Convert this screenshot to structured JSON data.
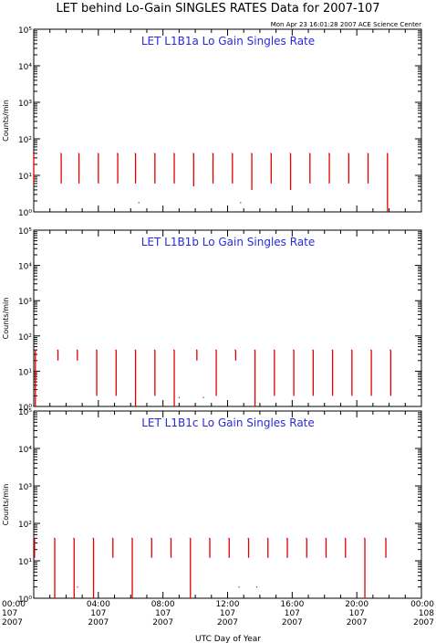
{
  "figure": {
    "title": "LET behind Lo-Gain SINGLES RATES Data for 2007-107",
    "timestamp": "Mon Apr 23 16:01:28 2007 ACE Science Center",
    "x_axis_label": "UTC Day of Year"
  },
  "chart_data": [
    {
      "type": "line",
      "title": "LET L1B1a Lo Gain Singles Rate",
      "ylabel": "Counts/min",
      "yscale": "log",
      "ylim": [
        1,
        100000
      ],
      "y_ticks": [
        "10⁰",
        "10¹",
        "10²",
        "10³",
        "10⁴",
        "10⁵"
      ],
      "x_unit": "hours UTC",
      "xlim": [
        0,
        24
      ],
      "series": [
        {
          "color": "#e00000",
          "pulses": [
            {
              "x": 0.0,
              "high": 40,
              "low": 6
            },
            {
              "x": 1.7,
              "high": 40,
              "low": 6
            },
            {
              "x": 2.8,
              "high": 40,
              "low": 6
            },
            {
              "x": 4.0,
              "high": 40,
              "low": 6
            },
            {
              "x": 5.2,
              "high": 40,
              "low": 6
            },
            {
              "x": 6.3,
              "high": 40,
              "low": 6
            },
            {
              "x": 7.5,
              "high": 40,
              "low": 6
            },
            {
              "x": 8.7,
              "high": 40,
              "low": 6
            },
            {
              "x": 9.9,
              "high": 40,
              "low": 5
            },
            {
              "x": 11.1,
              "high": 40,
              "low": 6
            },
            {
              "x": 12.3,
              "high": 40,
              "low": 6
            },
            {
              "x": 13.5,
              "high": 40,
              "low": 4
            },
            {
              "x": 14.7,
              "high": 40,
              "low": 6
            },
            {
              "x": 15.9,
              "high": 40,
              "low": 4
            },
            {
              "x": 17.1,
              "high": 40,
              "low": 6
            },
            {
              "x": 18.3,
              "high": 40,
              "low": 6
            },
            {
              "x": 19.5,
              "high": 40,
              "low": 6
            },
            {
              "x": 20.7,
              "high": 40,
              "low": 6
            },
            {
              "x": 21.9,
              "high": 40,
              "low": 1
            }
          ],
          "dots": [
            {
              "x": 6.5,
              "y": 1.8
            },
            {
              "x": 12.8,
              "y": 1.8
            }
          ]
        }
      ]
    },
    {
      "type": "line",
      "title": "LET L1B1b Lo Gain Singles Rate",
      "ylabel": "Counts/min",
      "yscale": "log",
      "ylim": [
        1,
        100000
      ],
      "y_ticks": [
        "10⁰",
        "10¹",
        "10²",
        "10³",
        "10⁴",
        "10⁵"
      ],
      "x_unit": "hours UTC",
      "xlim": [
        0,
        24
      ],
      "series": [
        {
          "color": "#e00000",
          "pulses": [
            {
              "x": 0.1,
              "high": 40,
              "low": 1
            },
            {
              "x": 1.5,
              "high": 40,
              "low": 20
            },
            {
              "x": 2.7,
              "high": 40,
              "low": 20
            },
            {
              "x": 3.9,
              "high": 40,
              "low": 2
            },
            {
              "x": 5.1,
              "high": 40,
              "low": 2
            },
            {
              "x": 6.3,
              "high": 40,
              "low": 1
            },
            {
              "x": 7.5,
              "high": 40,
              "low": 2
            },
            {
              "x": 8.7,
              "high": 40,
              "low": 1
            },
            {
              "x": 10.1,
              "high": 40,
              "low": 20
            },
            {
              "x": 11.3,
              "high": 40,
              "low": 2
            },
            {
              "x": 12.5,
              "high": 40,
              "low": 20
            },
            {
              "x": 13.7,
              "high": 40,
              "low": 1
            },
            {
              "x": 14.9,
              "high": 40,
              "low": 2
            },
            {
              "x": 16.1,
              "high": 40,
              "low": 2
            },
            {
              "x": 17.3,
              "high": 40,
              "low": 2
            },
            {
              "x": 18.5,
              "high": 40,
              "low": 2
            },
            {
              "x": 19.7,
              "high": 40,
              "low": 2
            },
            {
              "x": 20.9,
              "high": 40,
              "low": 2
            },
            {
              "x": 22.1,
              "high": 40,
              "low": 2
            }
          ],
          "dots": [
            {
              "x": 9.0,
              "y": 1.8
            },
            {
              "x": 10.5,
              "y": 1.8
            }
          ]
        }
      ]
    },
    {
      "type": "line",
      "title": "LET L1B1c Lo Gain Singles Rate",
      "ylabel": "Counts/min",
      "yscale": "log",
      "ylim": [
        1,
        100000
      ],
      "y_ticks": [
        "10⁰",
        "10¹",
        "10²",
        "10³",
        "10⁴",
        "10⁵"
      ],
      "x_unit": "hours UTC",
      "xlim": [
        0,
        24
      ],
      "series": [
        {
          "color": "#e00000",
          "pulses": [
            {
              "x": 0.05,
              "high": 40,
              "low": 12
            },
            {
              "x": 1.3,
              "high": 40,
              "low": 1
            },
            {
              "x": 2.5,
              "high": 40,
              "low": 1
            },
            {
              "x": 3.7,
              "high": 40,
              "low": 1
            },
            {
              "x": 4.9,
              "high": 40,
              "low": 12
            },
            {
              "x": 6.1,
              "high": 40,
              "low": 1
            },
            {
              "x": 7.3,
              "high": 40,
              "low": 12
            },
            {
              "x": 8.5,
              "high": 40,
              "low": 12
            },
            {
              "x": 9.7,
              "high": 40,
              "low": 1
            },
            {
              "x": 10.9,
              "high": 40,
              "low": 12
            },
            {
              "x": 12.1,
              "high": 40,
              "low": 12
            },
            {
              "x": 13.3,
              "high": 40,
              "low": 12
            },
            {
              "x": 14.5,
              "high": 40,
              "low": 12
            },
            {
              "x": 15.7,
              "high": 40,
              "low": 12
            },
            {
              "x": 16.9,
              "high": 40,
              "low": 12
            },
            {
              "x": 18.1,
              "high": 40,
              "low": 12
            },
            {
              "x": 19.3,
              "high": 40,
              "low": 12
            },
            {
              "x": 20.5,
              "high": 40,
              "low": 1
            },
            {
              "x": 21.8,
              "high": 40,
              "low": 12
            }
          ],
          "dots": [
            {
              "x": 2.7,
              "y": 2
            },
            {
              "x": 12.7,
              "y": 2
            },
            {
              "x": 13.8,
              "y": 2
            }
          ]
        }
      ]
    }
  ],
  "x_ticks": [
    {
      "x": 0,
      "time": "00:00",
      "day": "107",
      "year": "2007"
    },
    {
      "x": 4,
      "time": "04:00",
      "day": "107",
      "year": "2007"
    },
    {
      "x": 8,
      "time": "08:00",
      "day": "107",
      "year": "2007"
    },
    {
      "x": 12,
      "time": "12:00",
      "day": "107",
      "year": "2007"
    },
    {
      "x": 16,
      "time": "16:00",
      "day": "107",
      "year": "2007"
    },
    {
      "x": 20,
      "time": "20:00",
      "day": "107",
      "year": "2007"
    },
    {
      "x": 24,
      "time": "00:00",
      "day": "108",
      "year": "2007"
    }
  ],
  "colors": {
    "data": "#e00000",
    "panel_title": "#2a2ad8",
    "axes": "#000000"
  }
}
